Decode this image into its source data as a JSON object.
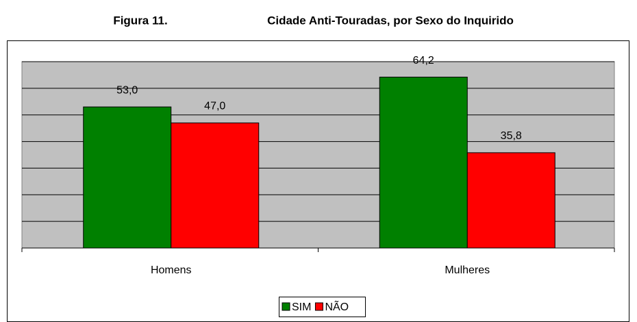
{
  "chart_data": {
    "type": "bar",
    "figure_label": "Figura 11.",
    "title": "Cidade Anti-Touradas, por Sexo do Inquirido",
    "categories": [
      "Homens",
      "Mulheres"
    ],
    "series": [
      {
        "name": "SIM",
        "color": "#008000",
        "values": [
          53.0,
          64.2
        ],
        "value_labels": [
          "53,0",
          "64,2"
        ]
      },
      {
        "name": "NÃO",
        "color": "#ff0000",
        "values": [
          47.0,
          35.8
        ],
        "value_labels": [
          "47,0",
          "35,8"
        ]
      }
    ],
    "ylim": [
      0,
      70
    ],
    "yticks": [
      0,
      10,
      20,
      30,
      40,
      50,
      60,
      70
    ],
    "grid": true,
    "legend": "bottom"
  }
}
